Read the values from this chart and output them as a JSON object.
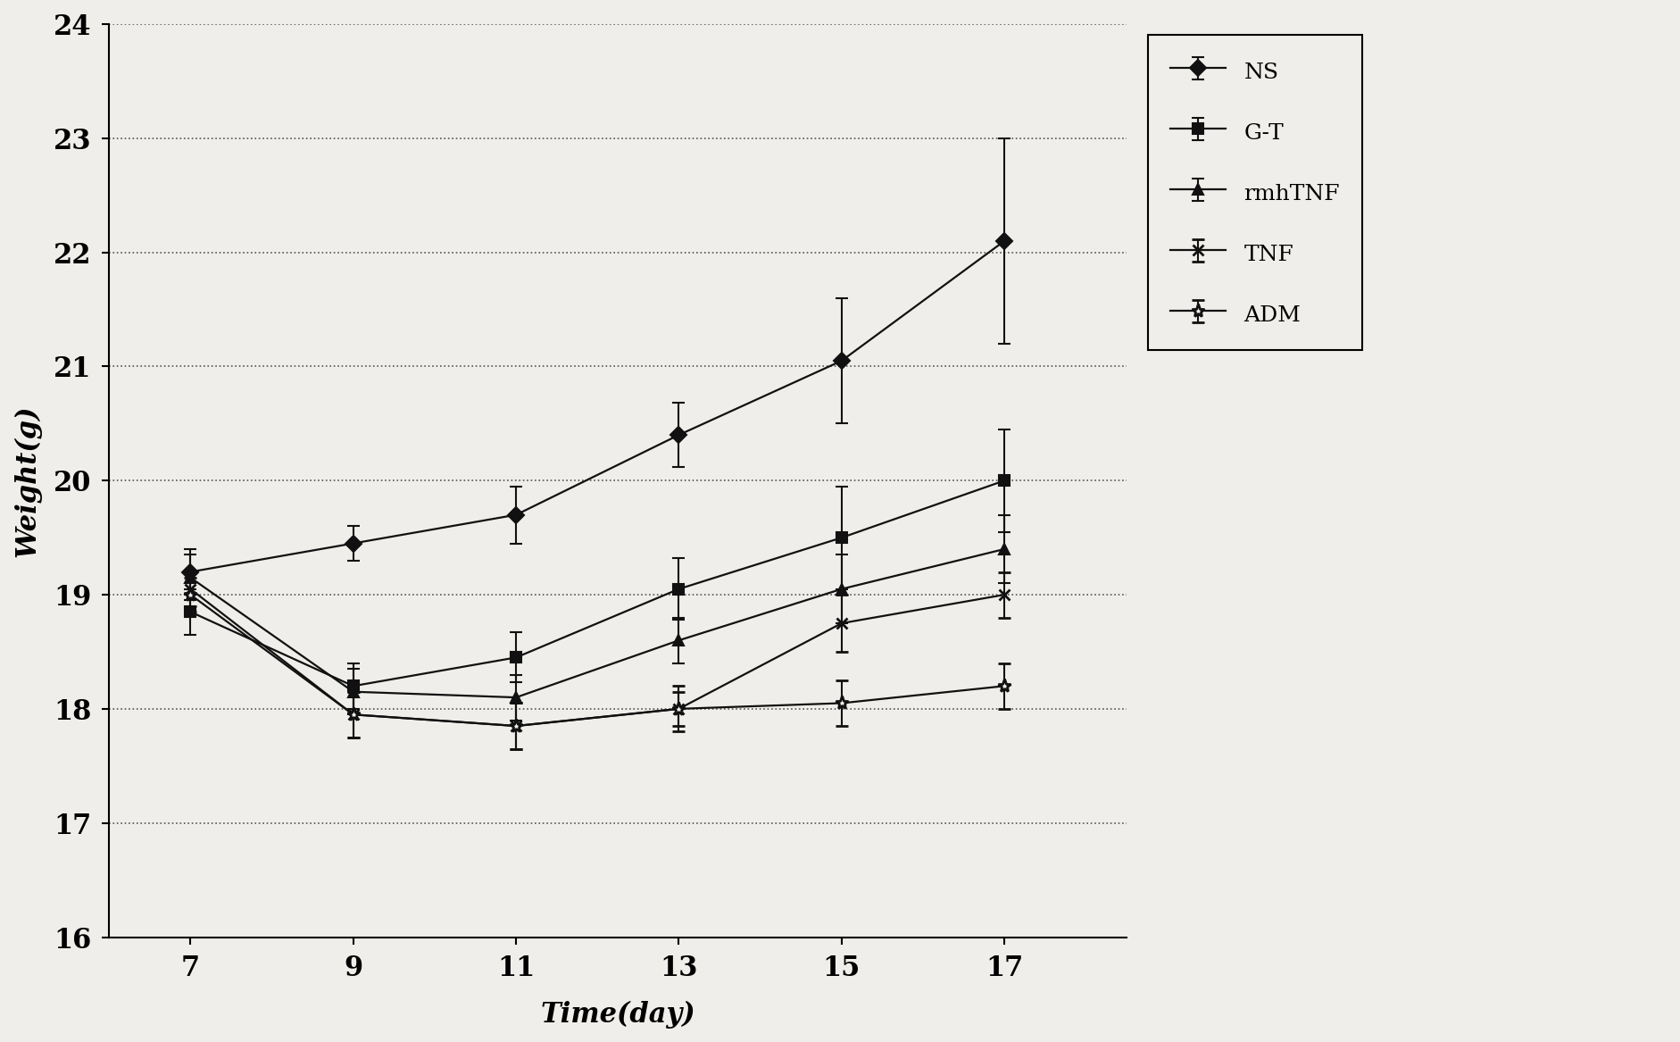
{
  "x": [
    7,
    9,
    11,
    13,
    15,
    17
  ],
  "series": {
    "NS": {
      "y": [
        19.2,
        19.45,
        19.7,
        20.4,
        21.05,
        22.1
      ],
      "yerr": [
        0.2,
        0.15,
        0.25,
        0.28,
        0.55,
        0.9
      ],
      "marker": "D",
      "ms": 9
    },
    "G-T": {
      "y": [
        18.85,
        18.2,
        18.45,
        19.05,
        19.5,
        20.0
      ],
      "yerr": [
        0.2,
        0.2,
        0.22,
        0.27,
        0.45,
        0.45
      ],
      "marker": "s",
      "ms": 9
    },
    "rmhTNF": {
      "y": [
        19.15,
        18.15,
        18.1,
        18.6,
        19.05,
        19.4
      ],
      "yerr": [
        0.2,
        0.2,
        0.2,
        0.2,
        0.3,
        0.3
      ],
      "marker": "^",
      "ms": 9
    },
    "TNF": {
      "y": [
        19.05,
        17.95,
        17.85,
        18.0,
        18.75,
        19.0
      ],
      "yerr": [
        0.15,
        0.2,
        0.2,
        0.15,
        0.25,
        0.2
      ],
      "marker": "x",
      "ms": 9
    },
    "ADM": {
      "y": [
        19.0,
        17.95,
        17.85,
        18.0,
        18.05,
        18.2
      ],
      "yerr": [
        0.15,
        0.2,
        0.2,
        0.2,
        0.2,
        0.2
      ],
      "marker": "*",
      "ms": 11
    }
  },
  "series_order": [
    "NS",
    "G-T",
    "rmhTNF",
    "TNF",
    "ADM"
  ],
  "xlabel": "Time(day)",
  "ylabel": "Weight(g)",
  "ylim": [
    16,
    24
  ],
  "xlim": [
    6.0,
    18.5
  ],
  "yticks": [
    16,
    17,
    18,
    19,
    20,
    21,
    22,
    23,
    24
  ],
  "xticks": [
    7,
    9,
    11,
    13,
    15,
    17
  ],
  "grid_color": "#555555",
  "line_color": "#111111",
  "background_color": "#f0eeea",
  "legend_fontsize": 18,
  "axis_label_fontsize": 22,
  "tick_fontsize": 22
}
